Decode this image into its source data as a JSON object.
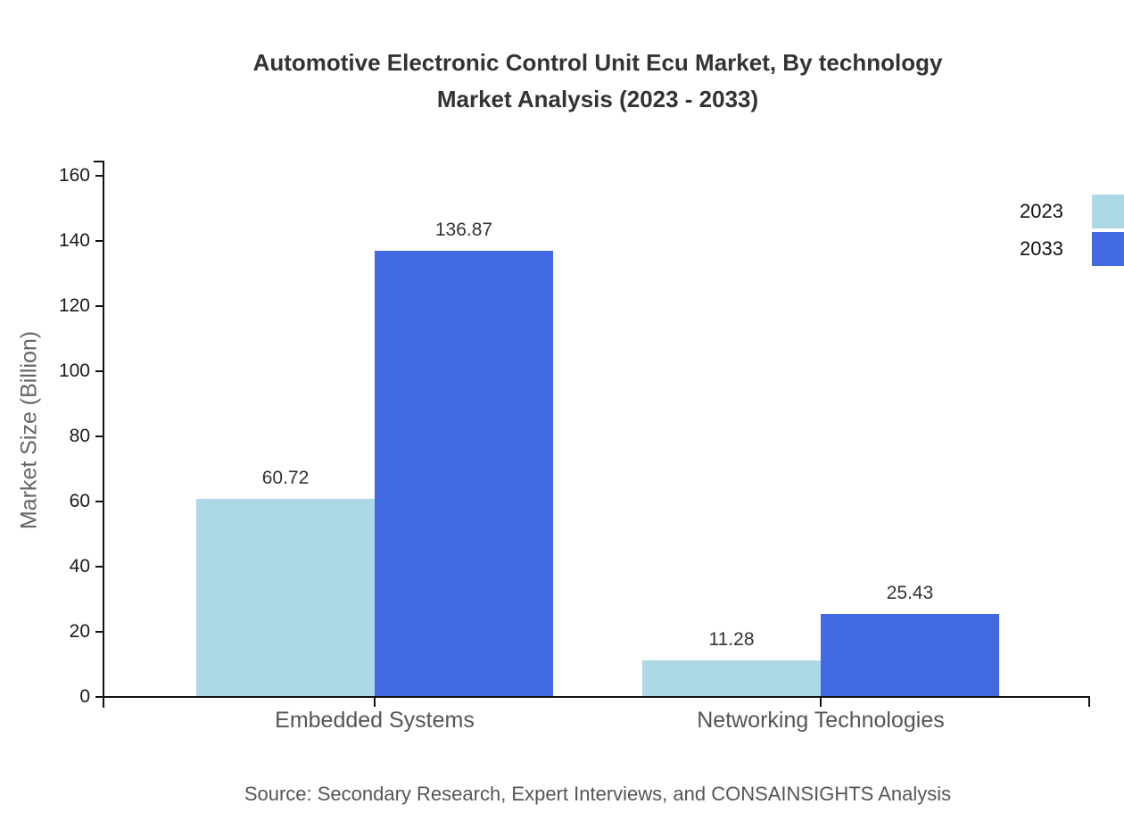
{
  "source_text": "Source: Secondary Research, Expert Interviews, and CONSAINSIGHTS Analysis",
  "chart_data": {
    "type": "bar",
    "title": "Automotive Electronic Control Unit Ecu Market, By technology Market Analysis (2023 - 2033)",
    "title_lines": [
      "Automotive Electronic Control Unit Ecu Market, By technology",
      "Market Analysis (2023 - 2033)"
    ],
    "xlabel": "",
    "ylabel": "Market Size (Billion)",
    "ylim": [
      0,
      160
    ],
    "ytick_step": 20,
    "ytick_labels": [
      "0",
      "20",
      "40",
      "60",
      "80",
      "100",
      "120",
      "140",
      "160"
    ],
    "grid": false,
    "legend_position": "top-right",
    "categories": [
      "Embedded Systems",
      "Networking Technologies"
    ],
    "series": [
      {
        "name": "2023",
        "color": "#ADD8E6",
        "values": [
          60.72,
          11.28
        ]
      },
      {
        "name": "2033",
        "color": "#4169E1",
        "values": [
          136.87,
          25.43
        ]
      }
    ]
  }
}
